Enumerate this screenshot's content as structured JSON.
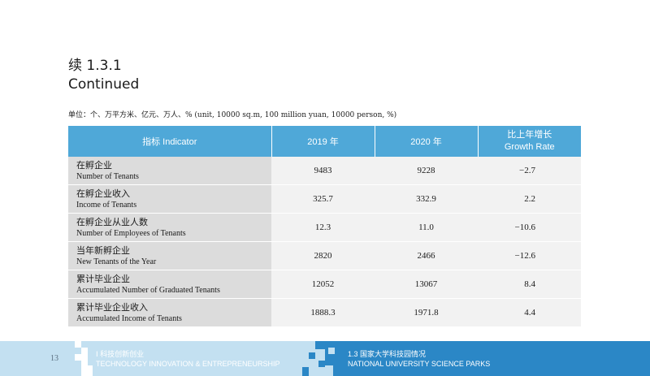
{
  "heading": {
    "line1": "续 1.3.1",
    "line2": "Continued"
  },
  "unit_note": "单位：个、万平方米、亿元、万人、%  (unit, 10000 sq.m, 100 million yuan, 10000 person, %)",
  "table": {
    "headers": {
      "indicator": "指标 Indicator",
      "y2019": "2019 年",
      "y2020": "2020 年",
      "growth_zh": "比上年增长",
      "growth_en": "Growth Rate"
    },
    "rows": [
      {
        "zh": "在孵企业",
        "en": "Number of Tenants",
        "v2019": "9483",
        "v2020": "9228",
        "growth": "−2.7"
      },
      {
        "zh": "在孵企业收入",
        "en": "Income of Tenants",
        "v2019": "325.7",
        "v2020": "332.9",
        "growth": "2.2"
      },
      {
        "zh": "在孵企业从业人数",
        "en": "Number of Employees of Tenants",
        "v2019": "12.3",
        "v2020": "11.0",
        "growth": "−10.6"
      },
      {
        "zh": "当年新孵企业",
        "en": "New Tenants of the Year",
        "v2019": "2820",
        "v2020": "2466",
        "growth": "−12.6"
      },
      {
        "zh": "累计毕业企业",
        "en": "Accumulated Number of Graduated Tenants",
        "v2019": "12052",
        "v2020": "13067",
        "growth": "8.4"
      },
      {
        "zh": "累计毕业企业收入",
        "en": "Accumulated Income of Tenants",
        "v2019": "1888.3",
        "v2020": "1971.8",
        "growth": "4.4"
      }
    ]
  },
  "footer": {
    "page_number": "13",
    "left_zh": "Ⅰ 科技创新创业",
    "left_en": "TECHNOLOGY INNOVATION & ENTREPRENEURSHIP",
    "right_zh": "1.3  国家大学科技园情况",
    "right_en": "NATIONAL UNIVERSITY SCIENCE PARKS"
  },
  "colors": {
    "header_blue": "#4fa8d8",
    "footer_dark_blue": "#2b87c6",
    "footer_light_blue": "#c3e0f1"
  }
}
